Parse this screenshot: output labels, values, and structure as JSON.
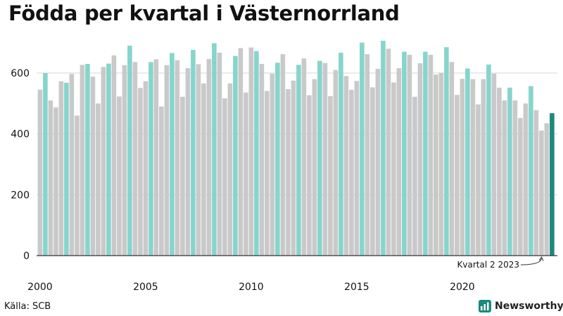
{
  "title": "Födda per kvartal i Västernorrland",
  "source": "Källa: SCB",
  "brand": "Newsworthy",
  "colors": {
    "q2": "#86d5cd",
    "other": "#c9c9c9",
    "highlight": "#1a8a7d",
    "grid": "#d4d4d4",
    "axis": "#333333",
    "text": "#111111"
  },
  "chart_data": {
    "type": "bar",
    "ylim": [
      0,
      720
    ],
    "y_ticks": [
      0,
      200,
      400,
      600
    ],
    "x_ticks": [
      "2000",
      "2005",
      "2010",
      "2015",
      "2020"
    ],
    "grid": true,
    "legend": "none",
    "annotation": "Kvartal 2 2023",
    "start_year": 2000,
    "start_quarter": 1,
    "values": [
      545,
      600,
      510,
      487,
      573,
      568,
      597,
      460,
      627,
      630,
      588,
      500,
      620,
      631,
      658,
      523,
      626,
      690,
      636,
      551,
      573,
      636,
      645,
      490,
      626,
      666,
      642,
      522,
      616,
      676,
      629,
      566,
      646,
      698,
      667,
      517,
      566,
      656,
      682,
      536,
      684,
      672,
      630,
      541,
      598,
      634,
      662,
      547,
      575,
      627,
      648,
      527,
      580,
      640,
      633,
      524,
      610,
      667,
      590,
      545,
      574,
      700,
      662,
      553,
      614,
      706,
      680,
      569,
      616,
      670,
      660,
      522,
      632,
      670,
      660,
      595,
      601,
      685,
      636,
      528,
      581,
      615,
      580,
      497,
      580,
      628,
      598,
      552,
      510,
      552,
      510,
      452,
      500,
      557,
      478,
      411,
      435,
      468
    ]
  }
}
